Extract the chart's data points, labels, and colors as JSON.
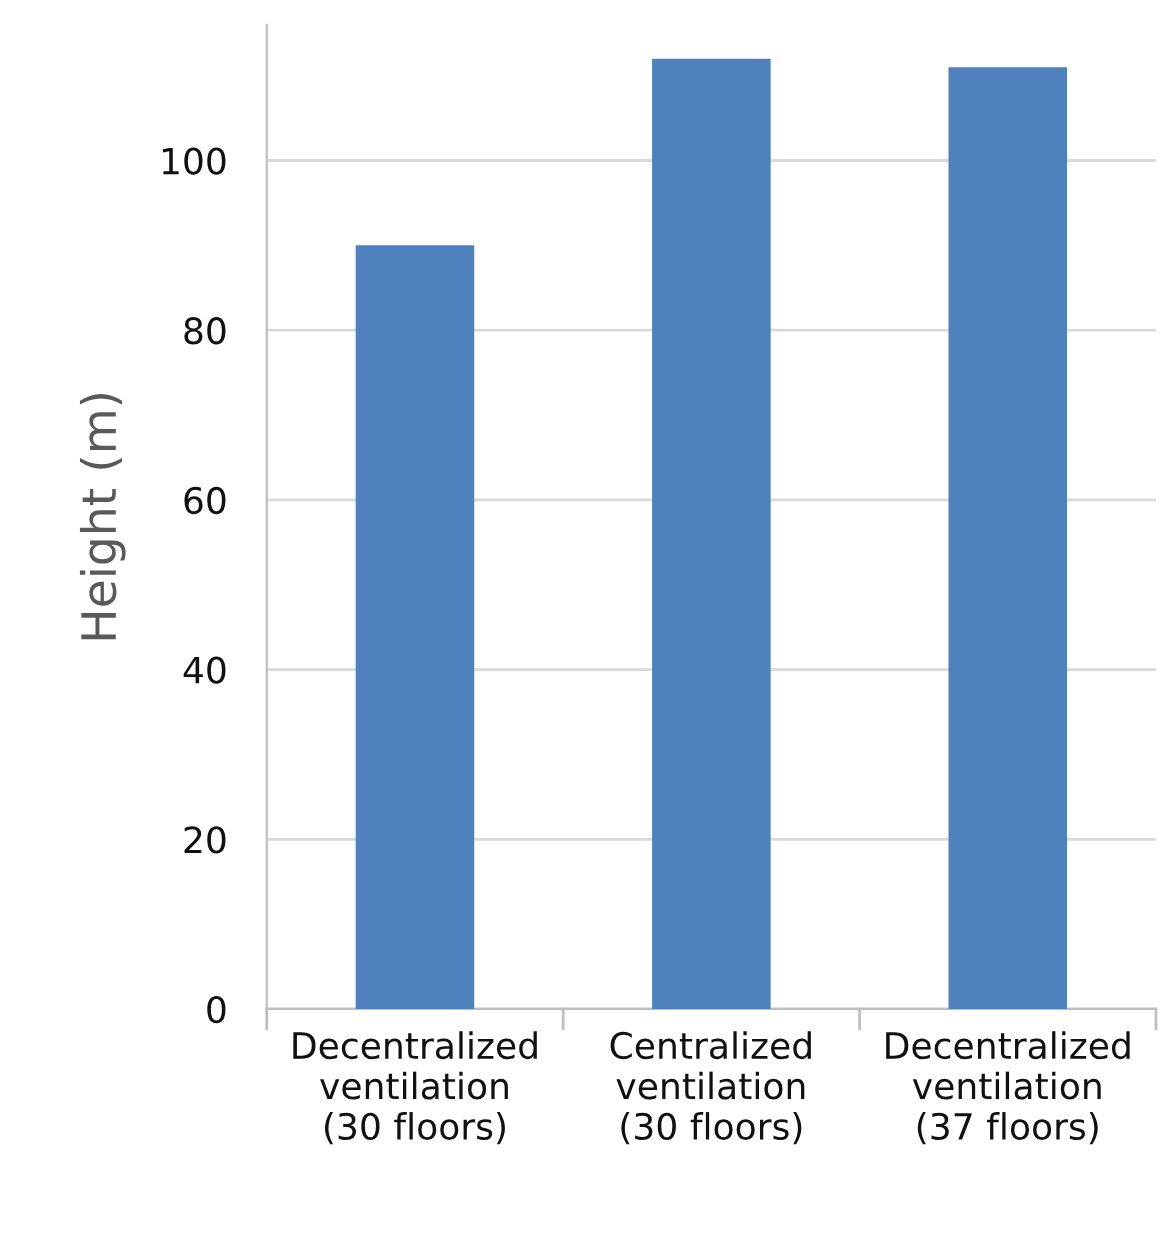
{
  "chart_data": {
    "type": "bar",
    "ylabel": "Height (m)",
    "categories": [
      "Decentralized\nventilation\n(30 floors)",
      "Centralized\nventilation\n(30 floors)",
      "Decentralized\nventilation\n(37 floors)"
    ],
    "values": [
      90,
      112,
      111
    ],
    "color": "#4f81bd",
    "ylim": [
      0,
      116
    ],
    "yticks": [
      0,
      20,
      40,
      60,
      80,
      100
    ],
    "grid": "y",
    "legend": false
  }
}
